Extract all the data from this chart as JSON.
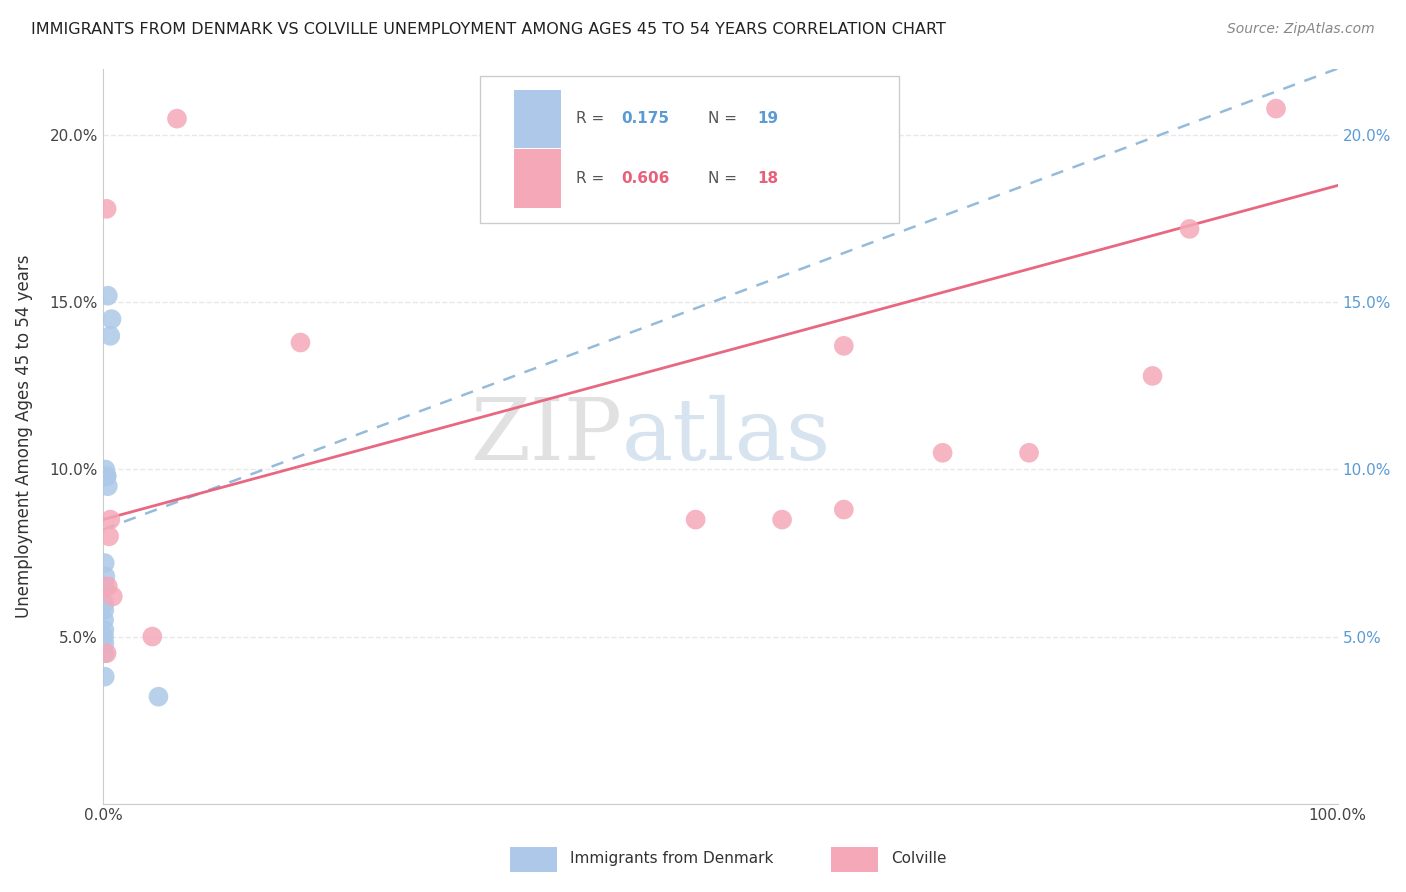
{
  "title": "IMMIGRANTS FROM DENMARK VS COLVILLE UNEMPLOYMENT AMONG AGES 45 TO 54 YEARS CORRELATION CHART",
  "source": "Source: ZipAtlas.com",
  "ylabel": "Unemployment Among Ages 45 to 54 years",
  "xlim": [
    0,
    100
  ],
  "ylim": [
    0,
    22
  ],
  "R_blue": 0.175,
  "N_blue": 19,
  "R_pink": 0.606,
  "N_pink": 18,
  "blue_color": "#adc8e8",
  "pink_color": "#f4a8b8",
  "blue_line_color": "#8ab4d8",
  "pink_line_color": "#e8607a",
  "right_tick_color": "#5b9bd5",
  "grid_color": "#e8e8e8",
  "blue_dots": [
    [
      0.4,
      15.2
    ],
    [
      0.7,
      14.5
    ],
    [
      0.6,
      14.0
    ],
    [
      0.3,
      9.8
    ],
    [
      0.4,
      9.5
    ],
    [
      0.2,
      10.0
    ],
    [
      0.3,
      9.8
    ],
    [
      0.15,
      7.2
    ],
    [
      0.2,
      6.8
    ],
    [
      0.15,
      6.5
    ],
    [
      0.1,
      6.0
    ],
    [
      0.12,
      5.8
    ],
    [
      0.1,
      5.5
    ],
    [
      0.12,
      5.2
    ],
    [
      0.1,
      5.0
    ],
    [
      0.12,
      4.8
    ],
    [
      0.1,
      4.5
    ],
    [
      0.15,
      3.8
    ],
    [
      4.5,
      3.2
    ]
  ],
  "pink_dots": [
    [
      0.3,
      17.8
    ],
    [
      6.0,
      20.5
    ],
    [
      0.6,
      8.5
    ],
    [
      0.5,
      8.0
    ],
    [
      0.4,
      6.5
    ],
    [
      0.8,
      6.2
    ],
    [
      4.0,
      5.0
    ],
    [
      0.3,
      4.5
    ],
    [
      16.0,
      13.8
    ],
    [
      48.0,
      8.5
    ],
    [
      55.0,
      8.5
    ],
    [
      60.0,
      13.7
    ],
    [
      68.0,
      10.5
    ],
    [
      75.0,
      10.5
    ],
    [
      85.0,
      12.8
    ],
    [
      88.0,
      17.2
    ],
    [
      60.0,
      8.8
    ],
    [
      95.0,
      20.8
    ]
  ],
  "blue_trendline_x": [
    0,
    100
  ],
  "blue_trendline_y": [
    8.2,
    22.0
  ],
  "pink_trendline_x": [
    0,
    100
  ],
  "pink_trendline_y": [
    8.5,
    18.5
  ]
}
